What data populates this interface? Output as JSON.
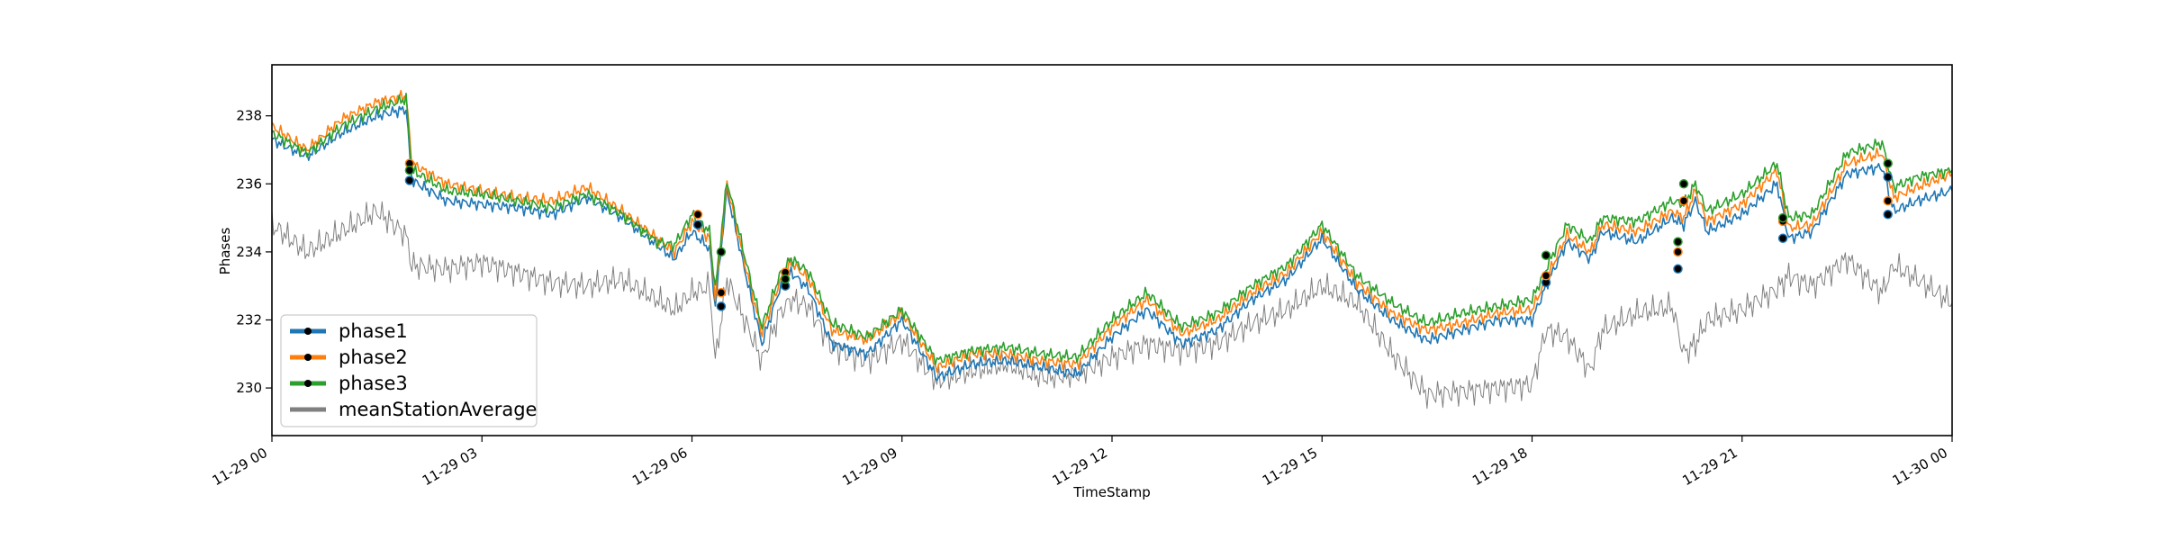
{
  "chart_data": {
    "type": "line",
    "xlabel": "TimeStamp",
    "ylabel": "Phases",
    "xlim": [
      "2024-11-29T00:00",
      "2024-11-30T00:00"
    ],
    "ylim": [
      228.6,
      239.5
    ],
    "x_ticks": [
      "11-29 00",
      "11-29 03",
      "11-29 06",
      "11-29 09",
      "11-29 12",
      "11-29 15",
      "11-29 18",
      "11-29 21",
      "11-30 00"
    ],
    "y_ticks": [
      230,
      232,
      234,
      236,
      238
    ],
    "legend_position": "lower-left",
    "x": [
      "00:00",
      "00:30",
      "01:00",
      "01:30",
      "01:55",
      "02:00",
      "02:30",
      "03:00",
      "03:30",
      "04:00",
      "04:30",
      "05:00",
      "05:30",
      "05:45",
      "06:00",
      "06:15",
      "06:20",
      "06:30",
      "06:45",
      "07:00",
      "07:15",
      "07:25",
      "07:40",
      "08:00",
      "08:30",
      "09:00",
      "09:30",
      "10:00",
      "10:30",
      "11:00",
      "11:30",
      "12:00",
      "12:30",
      "13:00",
      "13:30",
      "14:00",
      "14:30",
      "15:00",
      "15:30",
      "16:00",
      "16:30",
      "17:00",
      "17:30",
      "18:00",
      "18:12",
      "18:30",
      "18:50",
      "19:00",
      "19:30",
      "20:00",
      "20:10",
      "20:20",
      "20:30",
      "21:00",
      "21:30",
      "21:40",
      "22:00",
      "22:30",
      "23:00",
      "23:10",
      "23:30",
      "24:00"
    ],
    "series": [
      {
        "name": "phase1",
        "color": "#1f77b4",
        "values": [
          237.3,
          236.8,
          237.5,
          238.0,
          238.2,
          236.1,
          235.5,
          235.4,
          235.3,
          235.1,
          235.6,
          235.0,
          234.2,
          233.8,
          234.6,
          234.1,
          232.4,
          235.8,
          233.5,
          231.3,
          232.9,
          233.4,
          232.9,
          231.3,
          231.0,
          232.0,
          230.3,
          230.7,
          230.8,
          230.6,
          230.4,
          231.5,
          232.3,
          231.3,
          231.7,
          232.6,
          233.2,
          234.4,
          232.9,
          232.0,
          231.4,
          231.7,
          232.0,
          232.0,
          233.0,
          234.3,
          233.8,
          234.6,
          234.3,
          235.0,
          234.8,
          235.5,
          234.6,
          235.1,
          236.0,
          234.4,
          234.6,
          236.3,
          236.5,
          235.2,
          235.5,
          235.8
        ]
      },
      {
        "name": "phase2",
        "color": "#ff7f0e",
        "values": [
          237.7,
          237.0,
          237.9,
          238.4,
          238.6,
          236.6,
          236.0,
          235.8,
          235.6,
          235.5,
          235.9,
          235.2,
          234.4,
          234.0,
          234.9,
          234.4,
          232.7,
          236.0,
          233.7,
          231.6,
          233.1,
          233.7,
          233.2,
          231.7,
          231.4,
          232.2,
          230.6,
          231.0,
          231.0,
          230.8,
          230.7,
          231.8,
          232.6,
          231.6,
          232.0,
          232.8,
          233.4,
          234.6,
          233.1,
          232.2,
          231.7,
          231.9,
          232.2,
          232.3,
          233.2,
          234.5,
          234.0,
          234.8,
          234.6,
          235.2,
          235.0,
          235.8,
          234.9,
          235.4,
          236.4,
          234.7,
          234.8,
          236.6,
          236.9,
          235.6,
          235.9,
          236.3
        ]
      },
      {
        "name": "phase3",
        "color": "#2ca02c",
        "values": [
          237.5,
          236.9,
          237.7,
          238.2,
          238.5,
          236.4,
          235.8,
          235.7,
          235.5,
          235.3,
          235.7,
          235.1,
          234.3,
          234.2,
          235.1,
          234.6,
          232.9,
          236.1,
          233.9,
          231.8,
          233.3,
          233.8,
          233.4,
          231.9,
          231.5,
          232.3,
          230.8,
          231.1,
          231.2,
          231.0,
          230.9,
          232.0,
          232.8,
          231.8,
          232.2,
          233.0,
          233.6,
          234.8,
          233.3,
          232.5,
          231.9,
          232.2,
          232.4,
          232.6,
          233.5,
          234.8,
          234.3,
          235.0,
          234.9,
          235.5,
          235.4,
          236.0,
          235.2,
          235.7,
          236.6,
          235.0,
          235.1,
          236.9,
          237.2,
          235.9,
          236.2,
          236.4
        ]
      },
      {
        "name": "meanStationAverage",
        "color": "#808080",
        "values": [
          234.8,
          234.0,
          234.6,
          235.2,
          234.5,
          233.6,
          233.5,
          233.7,
          233.4,
          233.1,
          233.0,
          233.2,
          232.6,
          232.3,
          232.8,
          233.0,
          230.8,
          233.2,
          232.0,
          230.8,
          232.2,
          232.6,
          232.4,
          231.2,
          230.8,
          231.4,
          230.2,
          230.5,
          230.7,
          230.3,
          230.4,
          230.9,
          231.3,
          231.1,
          231.3,
          231.9,
          232.3,
          233.0,
          232.5,
          231.0,
          229.8,
          229.9,
          230.0,
          230.1,
          231.7,
          231.5,
          230.5,
          231.7,
          232.2,
          232.4,
          231.0,
          231.3,
          232.0,
          232.3,
          232.9,
          233.3,
          233.0,
          233.8,
          232.8,
          233.6,
          233.2,
          232.5
        ]
      }
    ],
    "marker_points": [
      {
        "x": "01:58",
        "series": "phase1",
        "y": 236.1
      },
      {
        "x": "01:58",
        "series": "phase2",
        "y": 236.6
      },
      {
        "x": "01:58",
        "series": "phase3",
        "y": 236.4
      },
      {
        "x": "06:05",
        "series": "phase1",
        "y": 234.8
      },
      {
        "x": "06:05",
        "series": "phase2",
        "y": 235.1
      },
      {
        "x": "06:25",
        "series": "phase1",
        "y": 232.4
      },
      {
        "x": "06:25",
        "series": "phase2",
        "y": 232.8
      },
      {
        "x": "06:25",
        "series": "phase3",
        "y": 234.0
      },
      {
        "x": "07:20",
        "series": "phase1",
        "y": 233.0
      },
      {
        "x": "07:20",
        "series": "phase2",
        "y": 233.4
      },
      {
        "x": "07:20",
        "series": "phase3",
        "y": 233.2
      },
      {
        "x": "18:12",
        "series": "phase1",
        "y": 233.1
      },
      {
        "x": "18:12",
        "series": "phase2",
        "y": 233.3
      },
      {
        "x": "18:12",
        "series": "phase3",
        "y": 233.9
      },
      {
        "x": "20:05",
        "series": "phase1",
        "y": 233.5
      },
      {
        "x": "20:05",
        "series": "phase2",
        "y": 234.0
      },
      {
        "x": "20:05",
        "series": "phase3",
        "y": 234.3
      },
      {
        "x": "20:10",
        "series": "phase2",
        "y": 235.5
      },
      {
        "x": "20:10",
        "series": "phase3",
        "y": 236.0
      },
      {
        "x": "21:35",
        "series": "phase1",
        "y": 234.4
      },
      {
        "x": "21:35",
        "series": "phase2",
        "y": 234.9
      },
      {
        "x": "21:35",
        "series": "phase3",
        "y": 235.0
      },
      {
        "x": "23:05",
        "series": "phase1",
        "y": 235.1
      },
      {
        "x": "23:05",
        "series": "phase2",
        "y": 235.5
      },
      {
        "x": "23:05",
        "series": "phase3",
        "y": 236.6
      },
      {
        "x": "23:05",
        "series": "phase1",
        "y": 236.2
      }
    ]
  }
}
